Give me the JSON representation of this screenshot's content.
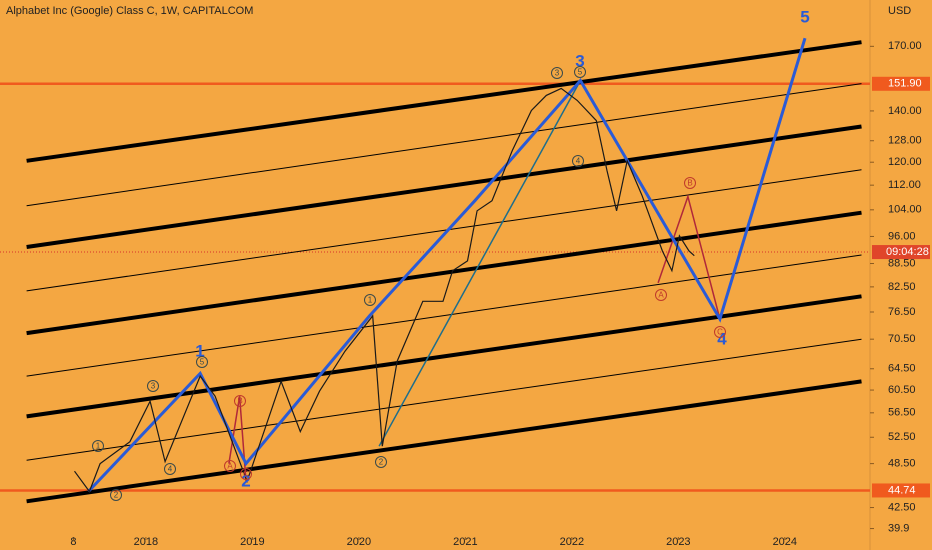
{
  "chart_data": {
    "type": "line",
    "title": "Alphabet Inc (Google) Class C, 1W, CAPITALCOM",
    "y_unit": "USD",
    "log_scale": true,
    "color": "#1a1a1a",
    "x": [
      2017.33,
      2017.47,
      2017.57,
      2017.85,
      2018.04,
      2018.18,
      2018.51,
      2018.65,
      2018.88,
      2018.95,
      2019.27,
      2019.45,
      2019.63,
      2019.87,
      2020.13,
      2020.22,
      2020.36,
      2020.6,
      2020.79,
      2020.88,
      2021.02,
      2021.11,
      2021.25,
      2021.44,
      2021.62,
      2021.76,
      2021.9,
      2022.05,
      2022.23,
      2022.33,
      2022.42,
      2022.52,
      2022.66,
      2022.85,
      2022.94,
      2023.01,
      2023.1,
      2023.15
    ],
    "values": [
      47.4,
      44.6,
      48.5,
      51.8,
      58.5,
      48.8,
      63.1,
      59.4,
      48.8,
      46.0,
      62.1,
      53.4,
      60.3,
      68.0,
      75.6,
      51.1,
      66.0,
      79.0,
      79.0,
      86.6,
      89.2,
      103.7,
      106.9,
      124.2,
      140.2,
      146.7,
      149.8,
      144.5,
      136.0,
      117.0,
      103.7,
      120.5,
      108.5,
      91.9,
      86.6,
      96.2,
      91.9,
      90.6
    ],
    "xlim": [
      2016.63,
      2024.8
    ],
    "xticks": [
      {
        "value": 2017.32,
        "label": "8"
      },
      2018,
      2019,
      2020,
      2021,
      2022,
      2023,
      2024
    ],
    "ylim": [
      38.9,
      195.4
    ],
    "yticks": [
      {
        "value": 170,
        "label": "170.00"
      },
      {
        "value": 140,
        "label": "140.00"
      },
      {
        "value": 128,
        "label": "128.00"
      },
      {
        "value": 120,
        "label": "120.00"
      },
      {
        "value": 112,
        "label": "112.00"
      },
      {
        "value": 104,
        "label": "104.00"
      },
      {
        "value": 96,
        "label": "96.00"
      },
      {
        "value": 88.5,
        "label": "88.50"
      },
      {
        "value": 82.5,
        "label": "82.50"
      },
      {
        "value": 76.5,
        "label": "76.50"
      },
      {
        "value": 70.5,
        "label": "70.50"
      },
      {
        "value": 64.5,
        "label": "64.50"
      },
      {
        "value": 60.5,
        "label": "60.50"
      },
      {
        "value": 56.5,
        "label": "56.50"
      },
      {
        "value": 52.5,
        "label": "52.50"
      },
      {
        "value": 48.5,
        "label": "48.50"
      },
      {
        "value": 42.5,
        "label": "42.50"
      },
      39.9
    ],
    "levels": [
      {
        "value": 151.9,
        "label": "151.90"
      },
      {
        "value": 44.74,
        "label": "44.74"
      }
    ],
    "level_color": "#f05a1e",
    "current": {
      "value": 91.6,
      "label": "09:04:28"
    },
    "drawings": [
      {
        "x": [
          2016.88,
          2024.72
        ],
        "y": [
          120.5,
          172.1
        ],
        "color": "#000000",
        "width": 4
      },
      {
        "x": [
          2016.88,
          2024.72
        ],
        "y": [
          105.3,
          152.0
        ],
        "color": "#000000",
        "width": 1
      },
      {
        "x": [
          2016.88,
          2024.72
        ],
        "y": [
          93.0,
          133.6
        ],
        "color": "#000000",
        "width": 4
      },
      {
        "x": [
          2016.88,
          2024.72
        ],
        "y": [
          81.5,
          117.3
        ],
        "color": "#000000",
        "width": 1
      },
      {
        "x": [
          2016.88,
          2024.72
        ],
        "y": [
          71.8,
          103.1
        ],
        "color": "#000000",
        "width": 4
      },
      {
        "x": [
          2016.88,
          2024.72
        ],
        "y": [
          63.1,
          90.8
        ],
        "color": "#000000",
        "width": 1
      },
      {
        "x": [
          2016.88,
          2024.72
        ],
        "y": [
          55.9,
          80.2
        ],
        "color": "#000000",
        "width": 4
      },
      {
        "x": [
          2016.88,
          2024.72
        ],
        "y": [
          49.0,
          70.5
        ],
        "color": "#000000",
        "width": 1
      },
      {
        "x": [
          2016.88,
          2024.72
        ],
        "y": [
          43.3,
          62.1
        ],
        "color": "#000000",
        "width": 4
      },
      {
        "x": [
          2020.19,
          2022.08
        ],
        "y": [
          51.1,
          153.4
        ],
        "color": "#1e6e8c",
        "width": 1.5
      },
      {
        "x": [
          2018.78,
          2018.88,
          2018.94
        ],
        "y": [
          48.5,
          59.4,
          46.0
        ],
        "color": "#b0283a",
        "width": 1.5
      },
      {
        "x": [
          2022.81,
          2023.09,
          2023.39
        ],
        "y": [
          83.5,
          108.2,
          74.9
        ],
        "color": "#b0283a",
        "width": 1.5
      },
      {
        "x": [
          2017.46,
          2018.51,
          2018.94,
          2020.1,
          2021.09,
          2022.08,
          2023.39,
          2024.19
        ],
        "y": [
          44.6,
          63.6,
          48.5,
          75.6,
          106.9,
          153.4,
          74.9,
          174.2
        ],
        "color": "#2a5bd7",
        "width": 3
      }
    ],
    "wave_labels": [
      "1",
      "2",
      "3",
      "4",
      "5"
    ],
    "circle_labels": [
      "1",
      "2",
      "3",
      "4",
      "5",
      "A",
      "B",
      "C",
      "1",
      "2",
      "3",
      "4",
      "5",
      "A",
      "B",
      "C"
    ]
  }
}
